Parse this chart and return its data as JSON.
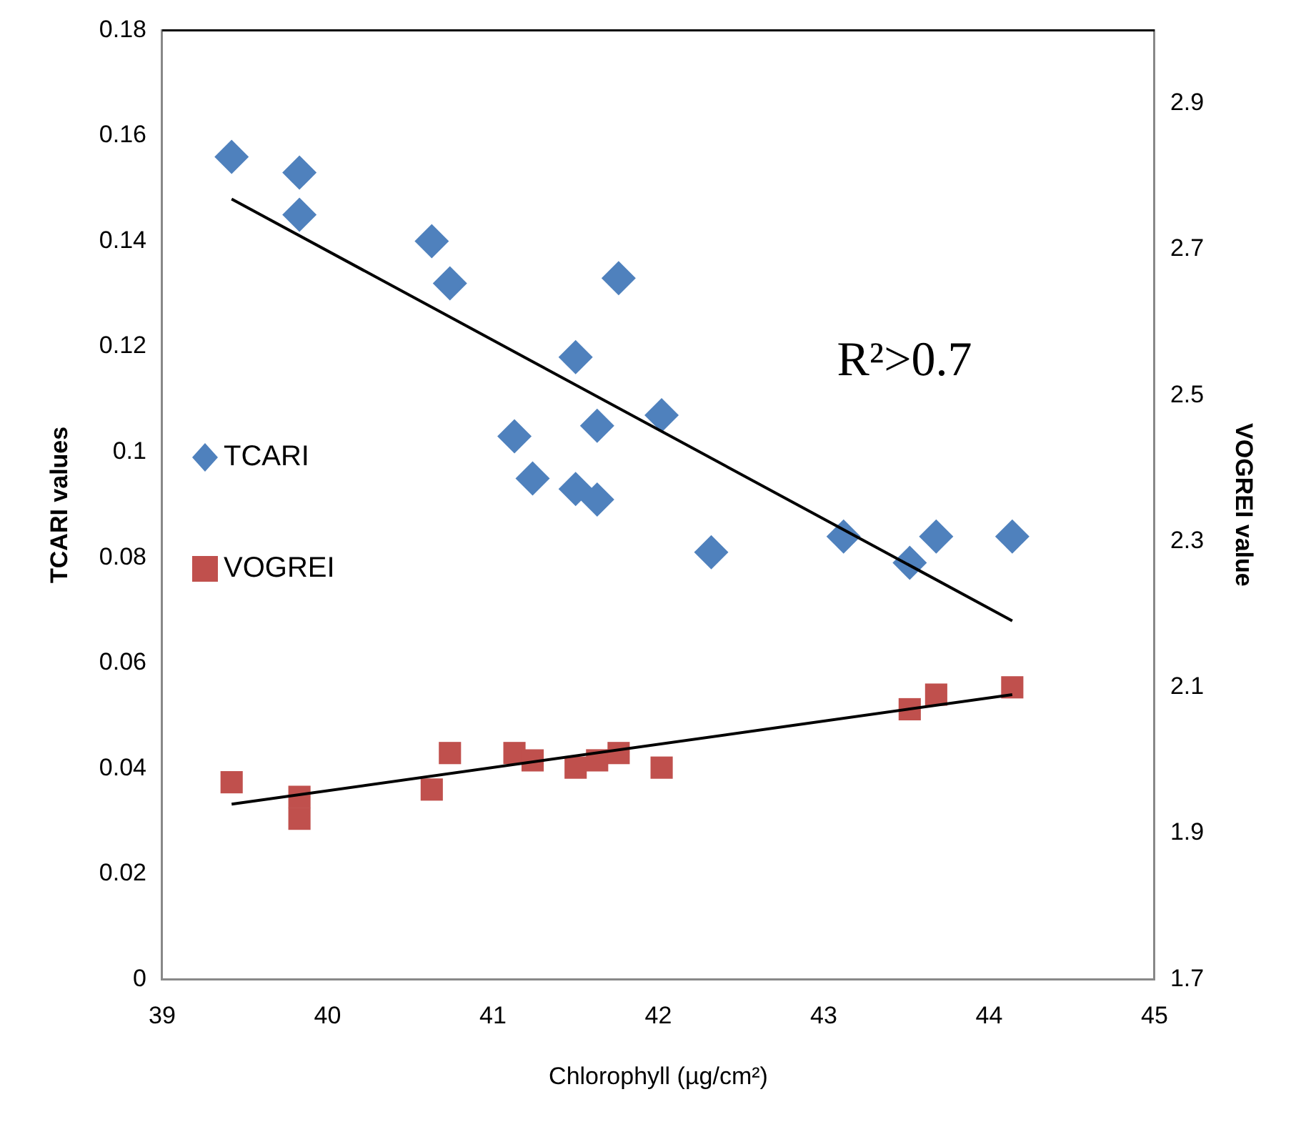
{
  "chart_data": {
    "type": "scatter",
    "xlabel": "Chlorophyll (µg/cm²)",
    "ylabel": "TCARI values",
    "y2label": "VOGREI value",
    "xlim": [
      39,
      45
    ],
    "xticks": [
      39,
      40,
      41,
      42,
      43,
      44,
      45
    ],
    "ylim": [
      0,
      0.18
    ],
    "yticks": [
      0,
      0.02,
      0.04,
      0.06,
      0.08,
      0.1,
      0.12,
      0.14,
      0.16,
      0.18
    ],
    "y2lim": [
      1.7,
      3.0
    ],
    "y2ticks": [
      1.7,
      1.9,
      2.1,
      2.3,
      2.5,
      2.7,
      2.9
    ],
    "grid": false,
    "legend": "left",
    "annotations": [
      "R²>0.7"
    ],
    "series": [
      {
        "name": "TCARI",
        "type": "scatter",
        "marker": "diamond",
        "color": "#4f81bd",
        "x": [
          39.42,
          39.83,
          39.83,
          40.63,
          40.74,
          41.76,
          41.5,
          41.13,
          41.63,
          42.02,
          41.24,
          41.5,
          41.63,
          42.32,
          43.12,
          43.52,
          43.68,
          44.14
        ],
        "values": [
          0.156,
          0.153,
          0.145,
          0.14,
          0.132,
          0.133,
          0.118,
          0.103,
          0.105,
          0.107,
          0.095,
          0.093,
          0.091,
          0.081,
          0.084,
          0.079,
          0.084,
          0.084
        ]
      },
      {
        "name": "VOGREI",
        "type": "scatter",
        "marker": "square",
        "axis": "y2",
        "color": "#c0504d",
        "x": [
          39.42,
          39.83,
          39.83,
          40.63,
          40.74,
          41.13,
          41.24,
          41.5,
          41.63,
          41.76,
          42.02,
          43.52,
          43.68,
          44.14
        ],
        "values": [
          1.97,
          1.95,
          1.92,
          1.96,
          2.01,
          2.01,
          2.0,
          1.99,
          2.0,
          2.01,
          1.99,
          2.07,
          2.09,
          2.1
        ]
      },
      {
        "type": "line",
        "marker": "none",
        "color": "#000000",
        "x": [
          39.42,
          44.14
        ],
        "values": [
          0.148,
          0.068
        ]
      },
      {
        "type": "line",
        "marker": "none",
        "axis": "y2",
        "color": "#000000",
        "x": [
          39.42,
          44.14
        ],
        "values": [
          1.94,
          2.09
        ]
      }
    ]
  }
}
